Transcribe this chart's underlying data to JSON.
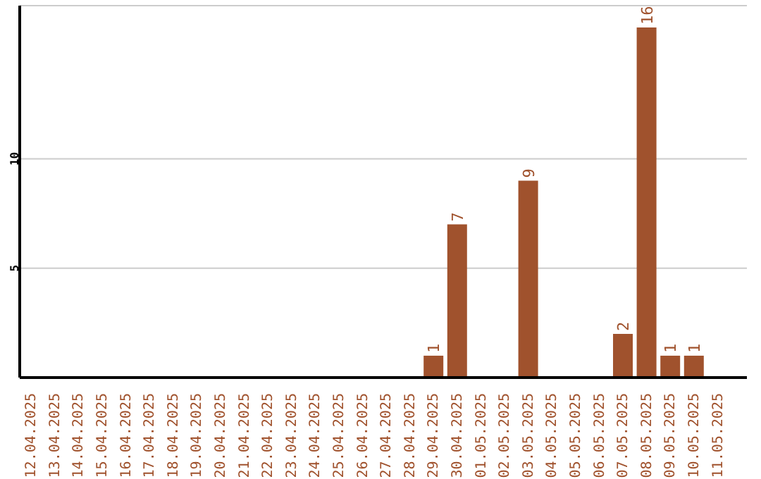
{
  "chart_data": {
    "type": "bar",
    "categories": [
      "12.04.2025",
      "13.04.2025",
      "14.04.2025",
      "15.04.2025",
      "16.04.2025",
      "17.04.2025",
      "18.04.2025",
      "19.04.2025",
      "20.04.2025",
      "21.04.2025",
      "22.04.2025",
      "23.04.2025",
      "24.04.2025",
      "25.04.2025",
      "26.04.2025",
      "27.04.2025",
      "28.04.2025",
      "29.04.2025",
      "30.04.2025",
      "01.05.2025",
      "02.05.2025",
      "03.05.2025",
      "04.05.2025",
      "05.05.2025",
      "06.05.2025",
      "07.05.2025",
      "08.05.2025",
      "09.05.2025",
      "10.05.2025",
      "11.05.2025"
    ],
    "values": [
      null,
      null,
      null,
      null,
      null,
      null,
      null,
      null,
      null,
      null,
      null,
      null,
      null,
      null,
      null,
      null,
      null,
      1,
      7,
      null,
      null,
      9,
      null,
      null,
      null,
      2,
      16,
      1,
      1,
      null
    ],
    "color": "#a0522d",
    "ylim": [
      0,
      17
    ],
    "yticks": [
      5,
      10
    ],
    "grid": "y",
    "data_labels": true
  }
}
